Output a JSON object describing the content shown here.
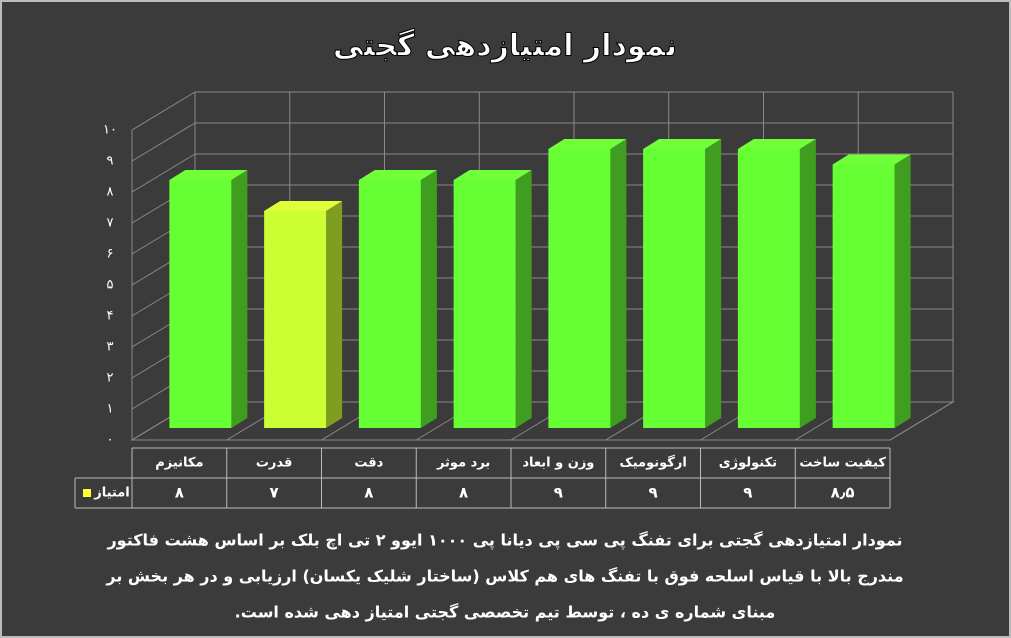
{
  "chart_data": {
    "type": "bar3d",
    "title": "نمودار امتیازدهی گجتی",
    "categories": [
      "مکانیزم",
      "قدرت",
      "دقت",
      "برد موثر",
      "وزن و ابعاد",
      "ارگونومیک",
      "تکنولوژی",
      "کیفیت ساخت"
    ],
    "series": [
      {
        "name": "امتیاز",
        "color": "#ffff33",
        "colors": [
          "#66ff33",
          "#ccff33",
          "#66ff33",
          "#66ff33",
          "#66ff33",
          "#66ff33",
          "#66ff33",
          "#66ff33"
        ],
        "values": [
          8,
          7,
          8,
          8,
          9,
          9,
          9,
          8.5
        ],
        "value_labels": [
          "۸",
          "۷",
          "۸",
          "۸",
          "۹",
          "۹",
          "۹",
          "۸٫۵"
        ]
      }
    ],
    "ylim": [
      0,
      10
    ],
    "yticks": [
      {
        "value": 0,
        "label": "۰"
      },
      {
        "value": 1,
        "label": "۱"
      },
      {
        "value": 2,
        "label": "۲"
      },
      {
        "value": 3,
        "label": "۳"
      },
      {
        "value": 4,
        "label": "۴"
      },
      {
        "value": 5,
        "label": "۵"
      },
      {
        "value": 6,
        "label": "۶"
      },
      {
        "value": 7,
        "label": "۷"
      },
      {
        "value": 8,
        "label": "۸"
      },
      {
        "value": 9,
        "label": "۹"
      },
      {
        "value": 10,
        "label": "۱۰"
      }
    ],
    "grid": true,
    "annotations": [
      "نمودار امتیازدهی گجتی برای تفنگ پی سی پی  دیانا پی ۱۰۰۰ ایوو ۲ تی اچ بلک بر اساس هشت فاکتور",
      "مندرج بالا با قیاس اسلحه فوق با تفنگ های هم کلاس (ساختار شلیک یکسان) ارزیابی و در هر بخش بر",
      "مبنای شماره ی ده ، توسط تیم تخصصی گجتی امتیاز دهی شده است."
    ]
  }
}
